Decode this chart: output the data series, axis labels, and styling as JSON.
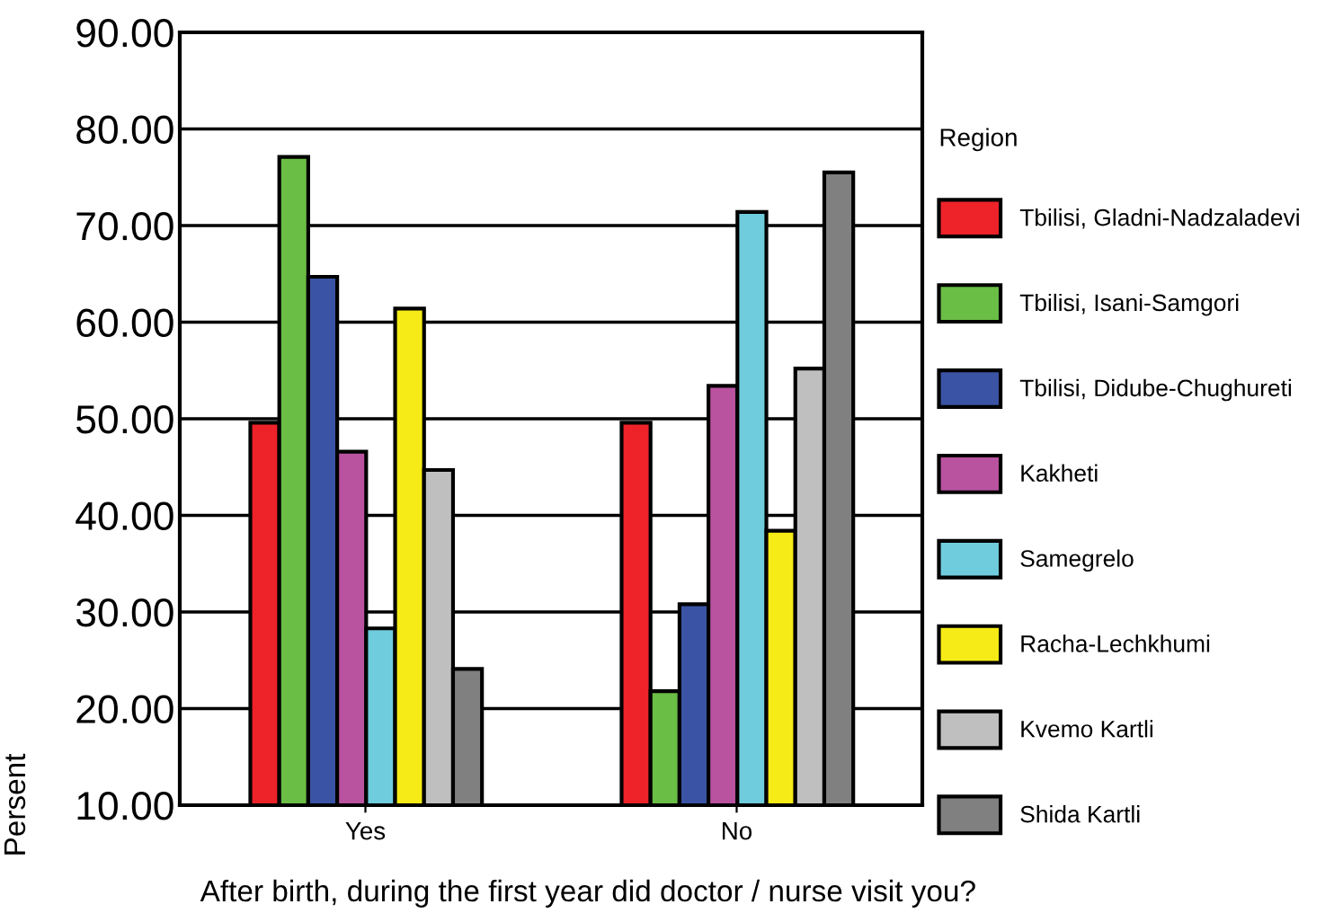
{
  "chart_data": {
    "type": "bar",
    "xlabel": "After birth, during the first year did doctor / nurse visit you?",
    "ylabel": "Persent",
    "legend_title": "Region",
    "legend": "right",
    "grid": "y",
    "categories": [
      "Yes",
      "No"
    ],
    "ylim": [
      10,
      90
    ],
    "yticks": [
      {
        "value": 10,
        "label": "10.00"
      },
      {
        "value": 20,
        "label": "20.00"
      },
      {
        "value": 30,
        "label": "30.00"
      },
      {
        "value": 40,
        "label": "40.00"
      },
      {
        "value": 50,
        "label": "50.00"
      },
      {
        "value": 60,
        "label": "60.00"
      },
      {
        "value": 70,
        "label": "70.00"
      },
      {
        "value": 80,
        "label": "80.00"
      },
      {
        "value": 90,
        "label": "90.00"
      }
    ],
    "series": [
      {
        "name": "Tbilisi, Gladni-Nadzaladevi",
        "color": "#ee2229",
        "values": [
          49.6,
          49.6
        ]
      },
      {
        "name": "Tbilisi, Isani-Samgori",
        "color": "#6abd45",
        "values": [
          77.1,
          21.8
        ]
      },
      {
        "name": "Tbilisi, Didube-Chughureti",
        "color": "#3a53a4",
        "values": [
          64.7,
          30.8
        ]
      },
      {
        "name": "Kakheti",
        "color": "#b9529f",
        "values": [
          46.6,
          53.4
        ]
      },
      {
        "name": "Samegrelo",
        "color": "#6fccdd",
        "values": [
          28.3,
          71.4
        ]
      },
      {
        "name": "Racha-Lechkhumi",
        "color": "#f6eb16",
        "values": [
          61.4,
          38.4
        ]
      },
      {
        "name": "Kvemo Kartli",
        "color": "#bfbfbf",
        "values": [
          44.7,
          55.2
        ]
      },
      {
        "name": "Shida Kartli",
        "color": "#808080",
        "values": [
          24.1,
          75.5
        ]
      }
    ]
  }
}
